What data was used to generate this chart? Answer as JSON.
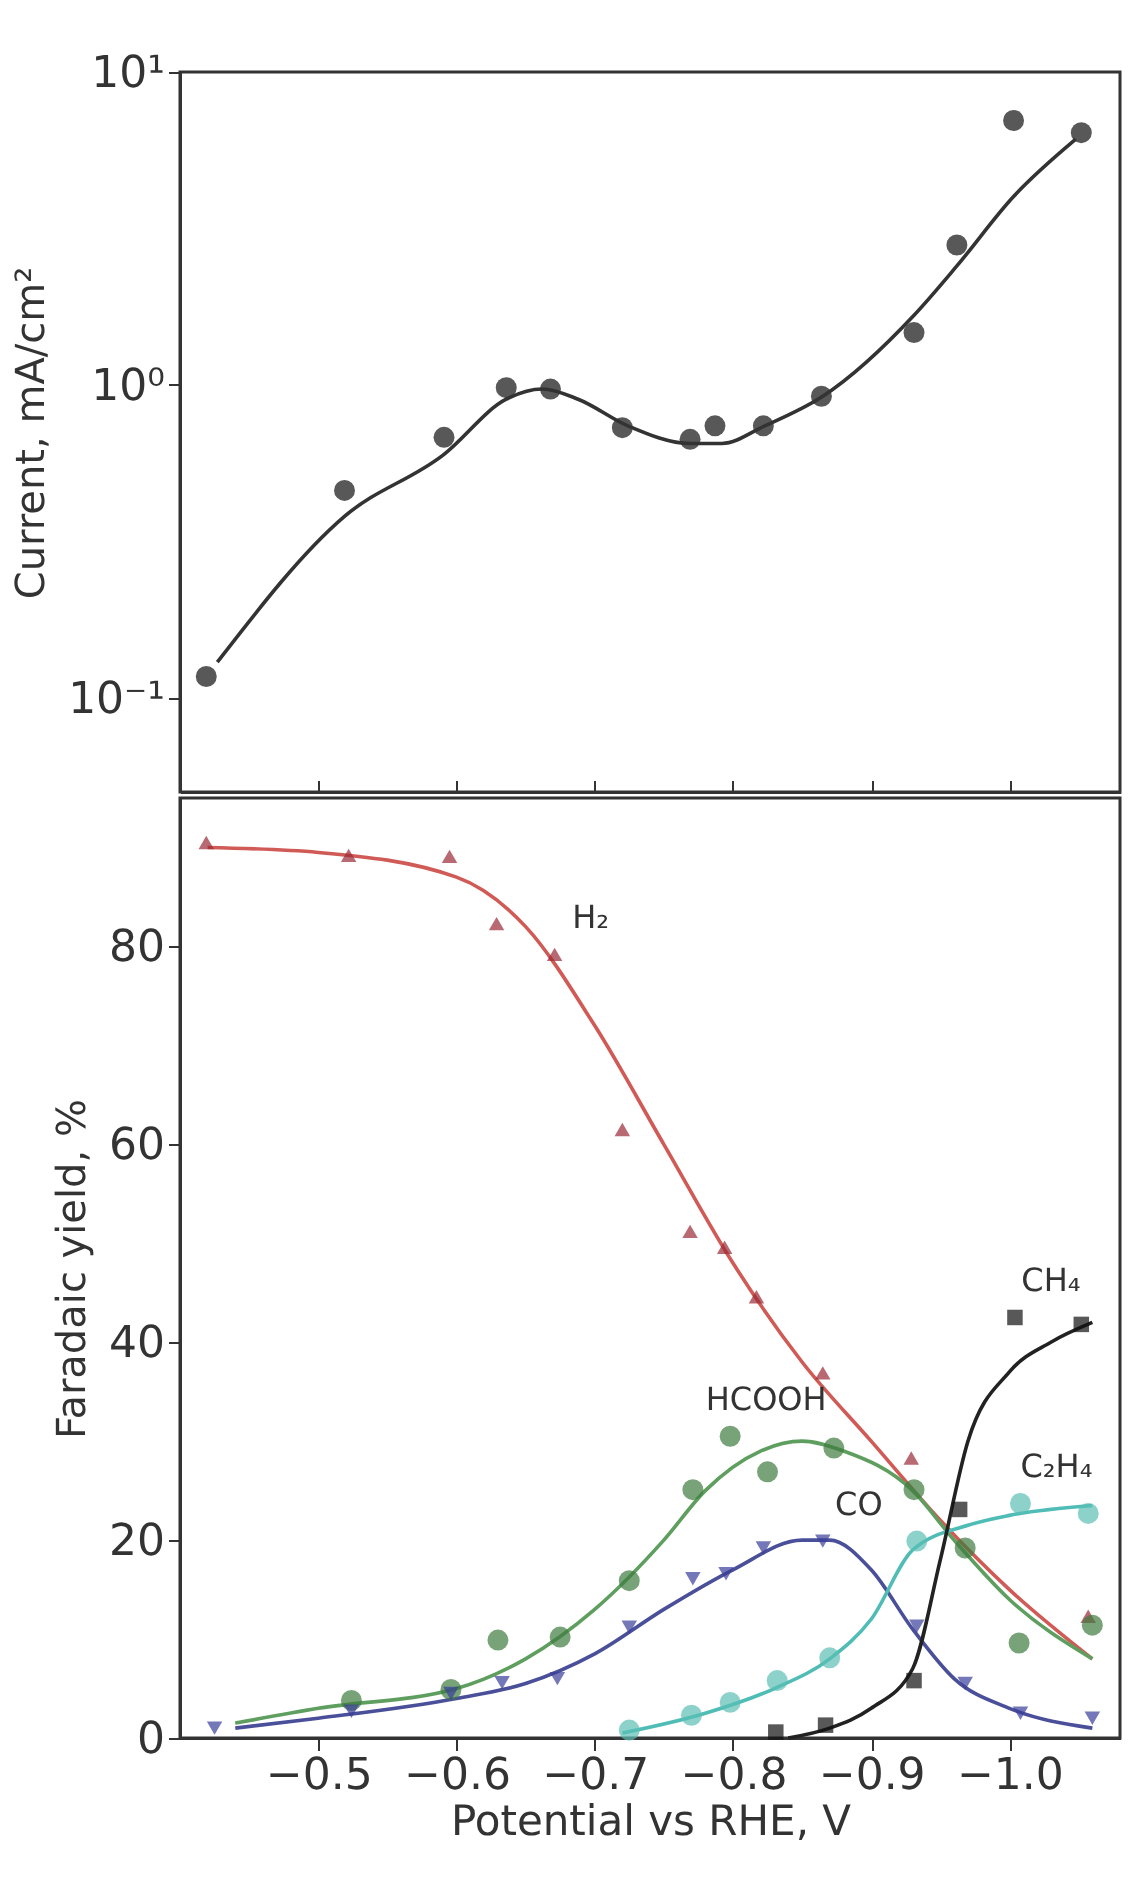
{
  "chart_data": [
    {
      "type": "scatter",
      "ylabel": "Current, mA/cm²",
      "log": "y",
      "xlim": [
        -0.4,
        -1.08
      ],
      "ylim": [
        0.05,
        10
      ],
      "xticks": [
        {
          "value": -0.5,
          "label": null
        },
        {
          "value": -0.6,
          "label": null
        },
        {
          "value": -0.7,
          "label": null
        },
        {
          "value": -0.8,
          "label": null
        },
        {
          "value": -0.9,
          "label": null
        },
        {
          "value": -1.0,
          "label": null
        }
      ],
      "yticks": [
        {
          "value": 0.1,
          "label": "10⁻¹"
        },
        {
          "value": 1,
          "label": "10⁰"
        },
        {
          "value": 10,
          "label": "10¹"
        }
      ],
      "tick_labels": "y",
      "grid": false,
      "series": [
        {
          "type": "scatter",
          "marker": "circle",
          "color": "#111111",
          "x": [
            -0.419,
            -0.519,
            -0.591,
            -0.636,
            -0.668,
            -0.72,
            -0.769,
            -0.787,
            -0.822,
            -0.864,
            -0.931,
            -0.962,
            -1.003,
            -1.052
          ],
          "values": [
            0.117,
            0.46,
            0.68,
            0.98,
            0.97,
            0.73,
            0.67,
            0.74,
            0.74,
            0.92,
            1.47,
            2.8,
            7.0,
            6.4
          ]
        },
        {
          "type": "line",
          "color": "#333333",
          "x": [
            -0.427,
            -0.519,
            -0.591,
            -0.636,
            -0.662,
            -0.688,
            -0.724,
            -0.769,
            -0.792,
            -0.823,
            -0.865,
            -0.931,
            -0.962,
            -1.003,
            -1.048
          ],
          "values": [
            0.13,
            0.38,
            0.6,
            0.9,
            0.97,
            0.9,
            0.74,
            0.65,
            0.65,
            0.74,
            0.92,
            1.67,
            2.4,
            4.0,
            6.1
          ]
        }
      ]
    },
    {
      "type": "scatter",
      "xlabel": "Potential vs RHE, V",
      "ylabel": "Faradaic yield, %",
      "xlim": [
        -0.4,
        -1.08
      ],
      "ylim": [
        0,
        95
      ],
      "xticks": [
        {
          "value": -0.5,
          "label": "−0.5"
        },
        {
          "value": -0.6,
          "label": "−0.6"
        },
        {
          "value": -0.7,
          "label": "−0.7"
        },
        {
          "value": -0.8,
          "label": "−0.8"
        },
        {
          "value": -0.9,
          "label": "−0.9"
        },
        {
          "value": -1.0,
          "label": "−1.0"
        }
      ],
      "yticks": [
        0,
        20,
        40,
        60,
        80
      ],
      "grid": false,
      "annotations": [
        {
          "text": "H₂",
          "x": -0.671,
          "y": 79.2
        },
        {
          "text": "HCOOH",
          "x": -0.798,
          "y": 30.5
        },
        {
          "text": "CO",
          "x": -0.865,
          "y": 19.9
        },
        {
          "text": "CH₄",
          "x": -1.004,
          "y": 42.5
        },
        {
          "text": "C₂H₄",
          "x": -1.008,
          "y": 23.7
        }
      ],
      "series": [
        {
          "type": "line",
          "color": "#d05a55",
          "x": [
            -0.42,
            -0.5,
            -0.6,
            -0.65,
            -0.7,
            -0.75,
            -0.8,
            -0.85,
            -0.9,
            -0.95,
            -1.0,
            -1.06
          ],
          "values": [
            90,
            89.5,
            87,
            82,
            72,
            60,
            48,
            38,
            30,
            22,
            15,
            8
          ]
        },
        {
          "type": "line",
          "color": "#5e9e5e",
          "x": [
            -0.44,
            -0.5,
            -0.6,
            -0.65,
            -0.7,
            -0.75,
            -0.78,
            -0.82,
            -0.85,
            -0.88,
            -0.93,
            -0.96,
            -1.0,
            -1.06
          ],
          "values": [
            1.5,
            3,
            5,
            8,
            13,
            20,
            25,
            29,
            30,
            29,
            25,
            20,
            14,
            8
          ]
        },
        {
          "type": "line",
          "color": "#4a4f9a",
          "x": [
            -0.44,
            -0.5,
            -0.6,
            -0.65,
            -0.7,
            -0.75,
            -0.8,
            -0.85,
            -0.87,
            -0.9,
            -0.93,
            -0.96,
            -1.0,
            -1.06
          ],
          "values": [
            1,
            2,
            4,
            5.5,
            8.5,
            13,
            17,
            20,
            20,
            17,
            11,
            6,
            3,
            1
          ]
        },
        {
          "type": "line",
          "color": "#4fbcb5",
          "x": [
            -0.72,
            -0.78,
            -0.83,
            -0.87,
            -0.9,
            -0.93,
            -0.97,
            -1.0,
            -1.06
          ],
          "values": [
            0.5,
            2.5,
            5,
            8,
            12,
            19,
            21.5,
            22.5,
            23.5
          ]
        },
        {
          "type": "line",
          "color": "#222222",
          "x": [
            -0.84,
            -0.87,
            -0.9,
            -0.93,
            -0.95,
            -0.97,
            -1.0,
            -1.03,
            -1.06
          ],
          "values": [
            0,
            1,
            3,
            7,
            18,
            30,
            37,
            40,
            42
          ]
        },
        {
          "type": "scatter",
          "marker": "triangle",
          "color": "#9a2a35",
          "x": [
            -0.419,
            -0.522,
            -0.595,
            -0.629,
            -0.671,
            -0.72,
            -0.769,
            -0.794,
            -0.817,
            -0.865,
            -0.929,
            -1.057
          ],
          "values": [
            90.5,
            89.2,
            89.1,
            82.3,
            79.2,
            61.5,
            51.2,
            49.6,
            44.6,
            36.9,
            28.3,
            12.3
          ]
        },
        {
          "type": "scatter",
          "marker": "circle",
          "color": "#3f7a3f",
          "x": [
            -0.524,
            -0.596,
            -0.63,
            -0.675,
            -0.725,
            -0.771,
            -0.798,
            -0.825,
            -0.873,
            -0.931,
            -0.968,
            -1.007,
            -1.06
          ],
          "values": [
            3.8,
            4.9,
            9.9,
            10.2,
            15.9,
            25.1,
            30.5,
            26.9,
            29.3,
            25.1,
            19.2,
            9.6,
            11.4
          ]
        },
        {
          "type": "scatter",
          "marker": "triangle-down",
          "color": "#3a3f9a",
          "x": [
            -0.425,
            -0.524,
            -0.596,
            -0.633,
            -0.673,
            -0.725,
            -0.771,
            -0.795,
            -0.822,
            -0.865,
            -0.933,
            -0.968,
            -1.008,
            -1.06
          ],
          "values": [
            1.0,
            2.7,
            4.5,
            5.6,
            6.0,
            11.2,
            16.1,
            16.6,
            19.2,
            19.9,
            11.3,
            5.5,
            2.5,
            2.0
          ]
        },
        {
          "type": "scatter",
          "marker": "circle",
          "color": "#5bbfb5",
          "x": [
            -0.725,
            -0.77,
            -0.798,
            -0.832,
            -0.87,
            -0.933,
            -1.008,
            -1.057
          ],
          "values": [
            0.8,
            2.3,
            3.6,
            5.8,
            8.1,
            19.9,
            23.7,
            22.7
          ]
        },
        {
          "type": "scatter",
          "marker": "square",
          "color": "#111111",
          "x": [
            -0.831,
            -0.867,
            -0.931,
            -0.964,
            -1.004,
            -1.052
          ],
          "values": [
            0.6,
            1.3,
            5.8,
            23.1,
            42.5,
            41.8
          ]
        }
      ]
    }
  ]
}
